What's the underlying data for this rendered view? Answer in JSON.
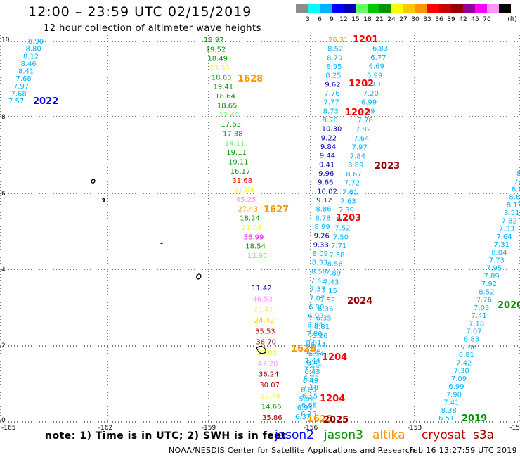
{
  "header": {
    "title": "12:00 – 23:59 UTC 02/15/2019",
    "subtitle": "12 hour collection of altimeter wave heights"
  },
  "colorbar": {
    "unit": "(ft)",
    "colors": [
      "#8c8c8c",
      "#00ffff",
      "#00b4ff",
      "#0000ff",
      "#0000b4",
      "#64ff64",
      "#00c800",
      "#009600",
      "#ffff00",
      "#ffc800",
      "#ff9600",
      "#ff0000",
      "#c80000",
      "#960000",
      "#960096",
      "#ff00ff",
      "#ff96ff",
      "#000000"
    ],
    "labels": [
      "3",
      "6",
      "9",
      "12",
      "15",
      "18",
      "21",
      "24",
      "27",
      "30",
      "33",
      "36",
      "39",
      "42",
      "45",
      "70"
    ]
  },
  "map": {
    "x_ticks": [
      "-165",
      "-162",
      "-159",
      "-156",
      "-153",
      "-15"
    ],
    "y_ticks": [
      "10",
      "8",
      "6",
      "4",
      "2",
      "0"
    ],
    "track_points": [
      {
        "v": "8.90",
        "c": "#00b4ff"
      },
      {
        "v": "8.80",
        "c": "#00b4ff"
      },
      {
        "v": "8.12",
        "c": "#00b4ff"
      },
      {
        "v": "8.46",
        "c": "#00b4ff"
      },
      {
        "v": "8.41",
        "c": "#00b4ff"
      },
      {
        "v": "7.68",
        "c": "#00b4ff"
      },
      {
        "v": "7.97",
        "c": "#00b4ff"
      },
      {
        "v": "7.68",
        "c": "#00b4ff"
      },
      {
        "v": "7.57",
        "c": "#00b4ff"
      },
      {
        "v": "19.97",
        "c": "#009600"
      },
      {
        "v": "19.52",
        "c": "#009600"
      },
      {
        "v": "18.49",
        "c": "#009600"
      },
      {
        "v": "23.35",
        "c": "#ffff00"
      },
      {
        "v": "18.63",
        "c": "#009600"
      },
      {
        "v": "19.41",
        "c": "#009600"
      },
      {
        "v": "18.64",
        "c": "#009600"
      },
      {
        "v": "18.65",
        "c": "#009600"
      },
      {
        "v": "12.49",
        "c": "#64ff64"
      },
      {
        "v": "17.63",
        "c": "#009600"
      },
      {
        "v": "17.38",
        "c": "#009600"
      },
      {
        "v": "14.11",
        "c": "#64ff64"
      },
      {
        "v": "19.11",
        "c": "#009600"
      },
      {
        "v": "19.11",
        "c": "#009600"
      },
      {
        "v": "16.17",
        "c": "#009600"
      },
      {
        "v": "31.68",
        "c": "#ff0000"
      },
      {
        "v": "23.04",
        "c": "#ffff00"
      },
      {
        "v": "45.25",
        "c": "#ff96ff"
      },
      {
        "v": "27.43",
        "c": "#ff9600"
      },
      {
        "v": "18.24",
        "c": "#009600"
      },
      {
        "v": "21.04",
        "c": "#ffff00"
      },
      {
        "v": "56.99",
        "c": "#ff00ff"
      },
      {
        "v": "18.54",
        "c": "#009600"
      },
      {
        "v": "13.95",
        "c": "#64ff64"
      },
      {
        "v": "11.42",
        "c": "#0000b4"
      },
      {
        "v": "46.53",
        "c": "#ff96ff"
      },
      {
        "v": "23.41",
        "c": "#ffff00"
      },
      {
        "v": "24.42",
        "c": "#ffc800"
      },
      {
        "v": "35.53",
        "c": "#c80000"
      },
      {
        "v": "36.70",
        "c": "#960000"
      },
      {
        "v": "17.00",
        "c": "#ffff00"
      },
      {
        "v": "47.28",
        "c": "#ff96ff"
      },
      {
        "v": "36.24",
        "c": "#960000"
      },
      {
        "v": "30.07",
        "c": "#c80000"
      },
      {
        "v": "22.76",
        "c": "#ffff00"
      },
      {
        "v": "14.66",
        "c": "#009600"
      },
      {
        "v": "35.86",
        "c": "#960000"
      },
      {
        "v": "26.31",
        "c": "#ff9600"
      },
      {
        "v": "8.52",
        "c": "#00b4ff"
      },
      {
        "v": "8.79",
        "c": "#00b4ff"
      },
      {
        "v": "8.95",
        "c": "#00b4ff"
      },
      {
        "v": "8.25",
        "c": "#00b4ff"
      },
      {
        "v": "9.62",
        "c": "#0000b4"
      },
      {
        "v": "7.76",
        "c": "#00b4ff"
      },
      {
        "v": "7.77",
        "c": "#00b4ff"
      },
      {
        "v": "8.73",
        "c": "#00b4ff"
      },
      {
        "v": "8.70",
        "c": "#00b4ff"
      },
      {
        "v": "10.30",
        "c": "#0000b4"
      },
      {
        "v": "9.22",
        "c": "#0000b4"
      },
      {
        "v": "9.84",
        "c": "#0000b4"
      },
      {
        "v": "9.44",
        "c": "#0000b4"
      },
      {
        "v": "9.41",
        "c": "#0000b4"
      },
      {
        "v": "9.96",
        "c": "#0000b4"
      },
      {
        "v": "9.66",
        "c": "#0000b4"
      },
      {
        "v": "10.02",
        "c": "#0000b4"
      },
      {
        "v": "9.12",
        "c": "#0000b4"
      },
      {
        "v": "8.86",
        "c": "#00b4ff"
      },
      {
        "v": "8.78",
        "c": "#00b4ff"
      },
      {
        "v": "8.99",
        "c": "#00b4ff"
      },
      {
        "v": "9.26",
        "c": "#0000b4"
      },
      {
        "v": "9.33",
        "c": "#0000b4"
      },
      {
        "v": "8.09",
        "c": "#00b4ff"
      },
      {
        "v": "8.33",
        "c": "#00b4ff"
      },
      {
        "v": "8.58",
        "c": "#00b4ff"
      },
      {
        "v": "7.43",
        "c": "#00b4ff"
      },
      {
        "v": "7.37",
        "c": "#00b4ff"
      },
      {
        "v": "7.07",
        "c": "#00b4ff"
      },
      {
        "v": "6.90",
        "c": "#00b4ff"
      },
      {
        "v": "6.99",
        "c": "#00b4ff"
      },
      {
        "v": "6.84",
        "c": "#00b4ff"
      },
      {
        "v": "7.80",
        "c": "#00b4ff"
      },
      {
        "v": "8.01",
        "c": "#00b4ff"
      },
      {
        "v": "7.05",
        "c": "#00b4ff"
      },
      {
        "v": "7.44",
        "c": "#00b4ff"
      },
      {
        "v": "7.77",
        "c": "#00b4ff"
      },
      {
        "v": "6.73",
        "c": "#00b4ff"
      },
      {
        "v": "7.18",
        "c": "#00b4ff"
      },
      {
        "v": "6.15",
        "c": "#00b4ff"
      },
      {
        "v": "6.68",
        "c": "#00b4ff"
      },
      {
        "v": "6.75",
        "c": "#00b4ff"
      },
      {
        "v": "6.83",
        "c": "#00b4ff"
      },
      {
        "v": "6.77",
        "c": "#00b4ff"
      },
      {
        "v": "6.69",
        "c": "#00b4ff"
      },
      {
        "v": "6.99",
        "c": "#00b4ff"
      },
      {
        "v": "7.13",
        "c": "#00b4ff"
      },
      {
        "v": "7.20",
        "c": "#00b4ff"
      },
      {
        "v": "6.99",
        "c": "#00b4ff"
      },
      {
        "v": "7.89",
        "c": "#00b4ff"
      },
      {
        "v": "7.78",
        "c": "#00b4ff"
      },
      {
        "v": "7.82",
        "c": "#00b4ff"
      },
      {
        "v": "7.64",
        "c": "#00b4ff"
      },
      {
        "v": "7.97",
        "c": "#00b4ff"
      },
      {
        "v": "7.84",
        "c": "#00b4ff"
      },
      {
        "v": "8.89",
        "c": "#00b4ff"
      },
      {
        "v": "8.67",
        "c": "#00b4ff"
      },
      {
        "v": "7.72",
        "c": "#00b4ff"
      },
      {
        "v": "7.61",
        "c": "#00b4ff"
      },
      {
        "v": "7.63",
        "c": "#00b4ff"
      },
      {
        "v": "7.39",
        "c": "#00b4ff"
      },
      {
        "v": "8.50",
        "c": "#00b4ff"
      },
      {
        "v": "7.52",
        "c": "#00b4ff"
      },
      {
        "v": "7.50",
        "c": "#00b4ff"
      },
      {
        "v": "7.71",
        "c": "#00b4ff"
      },
      {
        "v": "7.58",
        "c": "#00b4ff"
      },
      {
        "v": "8.56",
        "c": "#00b4ff"
      },
      {
        "v": "7.89",
        "c": "#00b4ff"
      },
      {
        "v": "7.43",
        "c": "#00b4ff"
      },
      {
        "v": "7.15",
        "c": "#00b4ff"
      },
      {
        "v": "7.52",
        "c": "#00b4ff"
      },
      {
        "v": "6.36",
        "c": "#00b4ff"
      },
      {
        "v": "6.35",
        "c": "#00b4ff"
      },
      {
        "v": "6.81",
        "c": "#00b4ff"
      },
      {
        "v": "5.26",
        "c": "#00b4ff"
      },
      {
        "v": "6.44",
        "c": "#00b4ff"
      },
      {
        "v": "6.54",
        "c": "#00b4ff"
      },
      {
        "v": "6.41",
        "c": "#00b4ff"
      },
      {
        "v": "6.43",
        "c": "#00b4ff"
      },
      {
        "v": "6.49",
        "c": "#00b4ff"
      },
      {
        "v": "6.60",
        "c": "#00b4ff"
      },
      {
        "v": "5.92",
        "c": "#00b4ff"
      },
      {
        "v": "6.94",
        "c": "#00b4ff"
      },
      {
        "v": "6.37",
        "c": "#00b4ff"
      },
      {
        "v": "6.51",
        "c": "#00b4ff"
      },
      {
        "v": "8.38",
        "c": "#00b4ff"
      },
      {
        "v": "7.41",
        "c": "#00b4ff"
      },
      {
        "v": "7.90",
        "c": "#00b4ff"
      },
      {
        "v": "6.99",
        "c": "#00b4ff"
      },
      {
        "v": "7.09",
        "c": "#00b4ff"
      },
      {
        "v": "7.30",
        "c": "#00b4ff"
      },
      {
        "v": "7.42",
        "c": "#00b4ff"
      },
      {
        "v": "6.81",
        "c": "#00b4ff"
      },
      {
        "v": "7.06",
        "c": "#00b4ff"
      },
      {
        "v": "6.83",
        "c": "#00b4ff"
      },
      {
        "v": "7.07",
        "c": "#00b4ff"
      },
      {
        "v": "7.18",
        "c": "#00b4ff"
      },
      {
        "v": "7.41",
        "c": "#00b4ff"
      },
      {
        "v": "7.03",
        "c": "#00b4ff"
      },
      {
        "v": "7.76",
        "c": "#00b4ff"
      },
      {
        "v": "8.52",
        "c": "#00b4ff"
      },
      {
        "v": "7.92",
        "c": "#00b4ff"
      },
      {
        "v": "7.89",
        "c": "#00b4ff"
      },
      {
        "v": "7.95",
        "c": "#00b4ff"
      },
      {
        "v": "7.73",
        "c": "#00b4ff"
      },
      {
        "v": "8.04",
        "c": "#00b4ff"
      },
      {
        "v": "7.31",
        "c": "#00b4ff"
      },
      {
        "v": "7.64",
        "c": "#00b4ff"
      },
      {
        "v": "7.33",
        "c": "#00b4ff"
      },
      {
        "v": "7.82",
        "c": "#00b4ff"
      },
      {
        "v": "8.51",
        "c": "#00b4ff"
      },
      {
        "v": "8.12",
        "c": "#00b4ff"
      },
      {
        "v": "8.63",
        "c": "#00b4ff"
      },
      {
        "v": "6.8",
        "c": "#00b4ff"
      },
      {
        "v": "7.0",
        "c": "#00b4ff"
      },
      {
        "v": "8.0",
        "c": "#00b4ff"
      },
      {
        "v": "8",
        "c": "#00b4ff"
      }
    ],
    "time_labels": [
      {
        "t": "2022",
        "c": "#0000ff"
      },
      {
        "t": "1628",
        "c": "#ff9600"
      },
      {
        "t": "1627",
        "c": "#ff9600"
      },
      {
        "t": "1201",
        "c": "#ff0000"
      },
      {
        "t": "1202",
        "c": "#ff0000"
      },
      {
        "t": "1202",
        "c": "#ff0000"
      },
      {
        "t": "2023",
        "c": "#960000"
      },
      {
        "t": "1203",
        "c": "#ff0000"
      },
      {
        "t": "2024",
        "c": "#960000"
      },
      {
        "t": "1204",
        "c": "#ff0000"
      },
      {
        "t": "1204",
        "c": "#ff0000"
      },
      {
        "t": "1626",
        "c": "#ff9600"
      },
      {
        "t": "1625",
        "c": "#ff9600"
      },
      {
        "t": "2025",
        "c": "#960000"
      },
      {
        "t": "2019",
        "c": "#009600"
      },
      {
        "t": "2020",
        "c": "#009600"
      }
    ]
  },
  "footer": {
    "note": "note:  1) Time is in UTC;  2) SWH is in feet",
    "satellites": [
      {
        "name": "jason2",
        "color": "#0000ff"
      },
      {
        "name": "jason3",
        "color": "#009600"
      },
      {
        "name": "altika",
        "color": "#ff9600"
      },
      {
        "name": "cryosat",
        "color": "#c80000"
      },
      {
        "name": "s3a",
        "color": "#960000"
      }
    ],
    "credit": "NOAA/NESDIS Center for Satellite Applications and Research",
    "timestamp": "Feb 16 13:27:59 UTC 2019"
  }
}
